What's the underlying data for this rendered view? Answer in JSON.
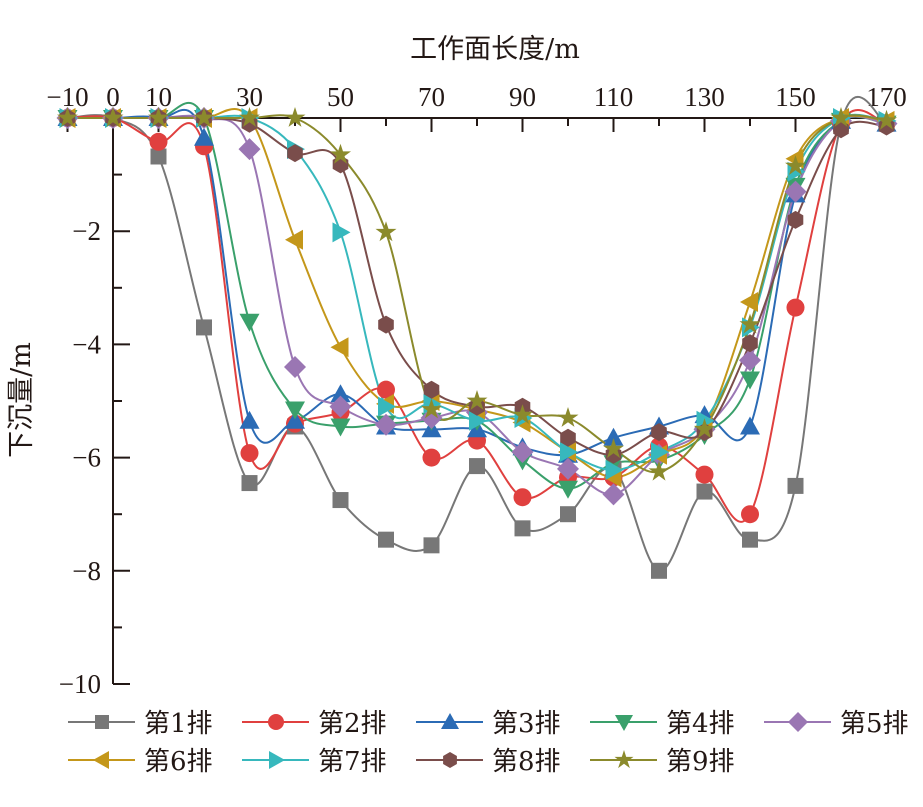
{
  "chart_data": {
    "type": "line",
    "title": "",
    "xlabel": "工作面长度/m",
    "ylabel": "下沉量/m",
    "xlim": [
      -10,
      170
    ],
    "ylim": [
      -10,
      0
    ],
    "x_ticks": [
      -10,
      0,
      10,
      30,
      50,
      70,
      90,
      110,
      130,
      150,
      170
    ],
    "x_tick_labels": [
      "−10",
      "0",
      "10",
      "30",
      "50",
      "70",
      "90",
      "110",
      "130",
      "150",
      "170"
    ],
    "x_minor_ticks": [
      20,
      40,
      60,
      80,
      100,
      120,
      140,
      160
    ],
    "y_ticks": [
      -2,
      -4,
      -6,
      -8,
      -10
    ],
    "y_tick_labels": [
      "−2",
      "−4",
      "−6",
      "−8",
      "−10"
    ],
    "y_minor_ticks": [
      -1,
      -3,
      -5,
      -7,
      -9
    ],
    "x_axis_position": "top",
    "grid": false,
    "legend_position": "bottom",
    "x": [
      -10,
      0,
      10,
      20,
      30,
      40,
      50,
      60,
      70,
      80,
      90,
      100,
      110,
      120,
      130,
      140,
      150,
      160,
      170
    ],
    "series": [
      {
        "name": "第1排",
        "marker": "square",
        "color": "#777777",
        "values": [
          0,
          0,
          -0.68,
          -3.7,
          -6.45,
          -5.45,
          -6.75,
          -7.45,
          -7.55,
          -6.15,
          -7.25,
          -7.0,
          -6.2,
          -8.0,
          -6.6,
          -7.45,
          -6.5,
          -0.1,
          -0.1
        ]
      },
      {
        "name": "第2排",
        "marker": "circle",
        "color": "#e0403f",
        "values": [
          0,
          0,
          -0.42,
          -0.5,
          -5.92,
          -5.4,
          -5.2,
          -4.8,
          -6.0,
          -5.7,
          -6.7,
          -6.35,
          -6.35,
          -5.8,
          -6.3,
          -7.0,
          -3.35,
          -0.1,
          -0.1
        ]
      },
      {
        "name": "第3排",
        "marker": "triangle-up",
        "color": "#2b6bb5",
        "values": [
          0,
          0,
          0,
          -0.35,
          -5.35,
          -5.35,
          -4.88,
          -5.45,
          -5.5,
          -5.5,
          -5.82,
          -5.95,
          -5.65,
          -5.45,
          -5.25,
          -5.45,
          -1.35,
          -0.05,
          -0.1
        ]
      },
      {
        "name": "第4排",
        "marker": "triangle-down",
        "color": "#3aa06b",
        "values": [
          0,
          0,
          0,
          0,
          -3.6,
          -5.15,
          -5.45,
          -5.4,
          -5.35,
          -5.35,
          -6.05,
          -6.55,
          -6.1,
          -6.05,
          -5.6,
          -4.62,
          -1.2,
          -0.05,
          -0.1
        ]
      },
      {
        "name": "第5排",
        "marker": "diamond",
        "color": "#9a76b3",
        "values": [
          0,
          0,
          0,
          0,
          -0.55,
          -4.4,
          -5.1,
          -5.42,
          -5.3,
          -5.2,
          -5.9,
          -6.2,
          -6.65,
          -5.95,
          -5.5,
          -4.28,
          -1.3,
          -0.05,
          -0.1
        ]
      },
      {
        "name": "第6排",
        "marker": "triangle-left",
        "color": "#c4971a",
        "values": [
          0,
          0,
          0,
          0,
          0,
          -2.15,
          -4.05,
          -5.05,
          -5.0,
          -5.15,
          -5.38,
          -5.9,
          -6.35,
          -5.95,
          -5.45,
          -3.25,
          -0.72,
          0,
          -0.05
        ]
      },
      {
        "name": "第7排",
        "marker": "triangle-right",
        "color": "#37b8bd",
        "values": [
          0,
          0,
          0,
          0,
          0,
          -0.55,
          -2.02,
          -5.1,
          -5.05,
          -5.35,
          -5.3,
          -5.9,
          -6.22,
          -5.9,
          -5.35,
          -3.7,
          -0.95,
          0,
          -0.05
        ]
      },
      {
        "name": "第8排",
        "marker": "hexagon",
        "color": "#7a4d4b",
        "values": [
          0,
          0,
          0,
          0,
          -0.1,
          -0.62,
          -0.82,
          -3.65,
          -4.8,
          -5.1,
          -5.1,
          -5.65,
          -5.95,
          -5.55,
          -5.55,
          -3.98,
          -1.8,
          -0.2,
          -0.15
        ]
      },
      {
        "name": "第9排",
        "marker": "star",
        "color": "#8b8a2c",
        "values": [
          0,
          0,
          0,
          0,
          0,
          0,
          -0.65,
          -2.02,
          -5.15,
          -5.0,
          -5.25,
          -5.3,
          -5.85,
          -6.25,
          -5.5,
          -3.65,
          -0.85,
          0,
          -0.05
        ]
      }
    ]
  }
}
